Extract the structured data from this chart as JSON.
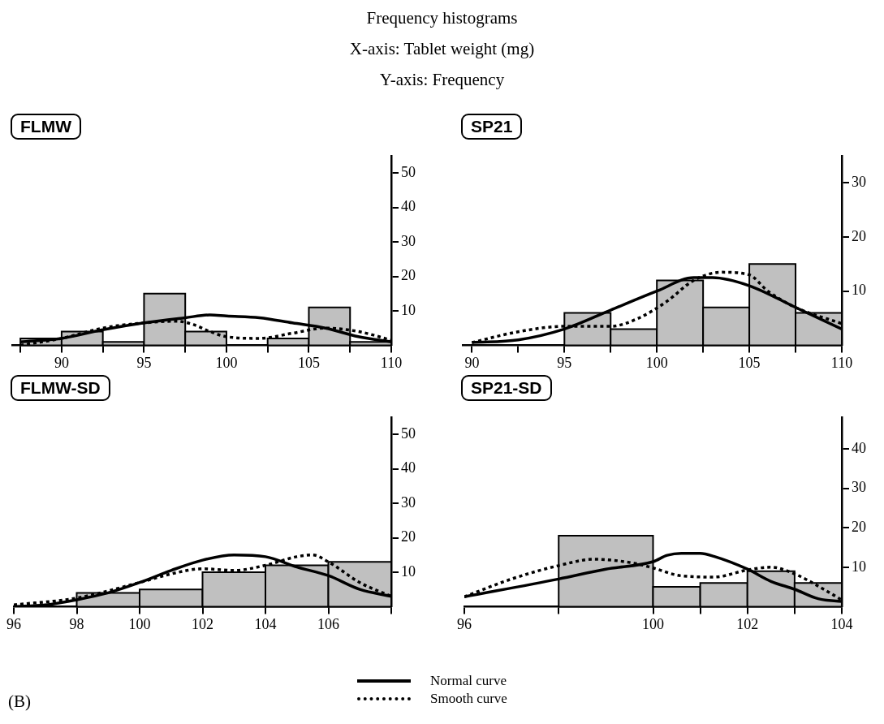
{
  "chart_data": [
    {
      "type": "other",
      "title": "Frequency histograms",
      "annotations": [
        "X-axis: Tablet weight (mg)",
        "Y-axis: Frequency",
        "(B)"
      ]
    },
    {
      "type": "histogram",
      "title": "FLMW",
      "bins": [
        87.5,
        90,
        92.5,
        95,
        97.5,
        100,
        102.5,
        105,
        107.5,
        110
      ],
      "values": [
        2,
        4,
        1,
        15,
        4,
        0,
        2,
        11,
        1
      ],
      "color": "#c0c0c0",
      "xlim": [
        87,
        110
      ],
      "ylim": [
        0,
        55
      ],
      "xticks": [
        {
          "value": 87.5,
          "label": null
        },
        90,
        {
          "value": 92.5,
          "label": null
        },
        95,
        {
          "value": 97.5,
          "label": null
        },
        100,
        {
          "value": 102.5,
          "label": null
        },
        105,
        {
          "value": 107.5,
          "label": null
        },
        110
      ],
      "yticks": [
        10,
        20,
        30,
        40,
        50
      ],
      "series": [
        {
          "type": "line",
          "color": "#000000",
          "line_style": "solid",
          "x": [
            87.5,
            90,
            92.5,
            95,
            97.5,
            99,
            100,
            102,
            104,
            106,
            108,
            110
          ],
          "values": [
            1,
            2,
            4.5,
            6.5,
            8,
            8.8,
            8.5,
            8,
            6.5,
            5,
            2.5,
            1
          ]
        },
        {
          "type": "line",
          "color": "#000000",
          "line_style": "dotted",
          "x": [
            87.5,
            90,
            92.5,
            95,
            97,
            98,
            99,
            100,
            102,
            104,
            106,
            108,
            110
          ],
          "values": [
            0,
            2,
            5,
            6.5,
            7,
            6,
            4,
            2.5,
            2,
            3.5,
            5,
            4,
            1.5
          ]
        }
      ]
    },
    {
      "type": "histogram",
      "title": "SP21",
      "bins": [
        95,
        97.5,
        100,
        102.5,
        105,
        107.5,
        110
      ],
      "values": [
        6,
        3,
        12,
        7,
        15,
        6
      ],
      "color": "#c0c0c0",
      "xlim": [
        89.5,
        110
      ],
      "ylim": [
        0,
        35
      ],
      "xticks": [
        90,
        {
          "value": 92.5,
          "label": null
        },
        95,
        {
          "value": 97.5,
          "label": null
        },
        100,
        {
          "value": 102.5,
          "label": null
        },
        105,
        {
          "value": 107.5,
          "label": null
        },
        110
      ],
      "yticks": [
        10,
        20,
        30
      ],
      "series": [
        {
          "type": "line",
          "color": "#000000",
          "line_style": "solid",
          "x": [
            90,
            92.5,
            95,
            97.5,
            100,
            102,
            103,
            105,
            107.5,
            110
          ],
          "values": [
            0.5,
            1,
            3,
            6.5,
            10,
            12.5,
            12.5,
            11,
            7,
            3
          ]
        },
        {
          "type": "line",
          "color": "#000000",
          "line_style": "dotted",
          "x": [
            90,
            92.5,
            95,
            97.5,
            99,
            100.5,
            102,
            103.5,
            105,
            106,
            107.5,
            110
          ],
          "values": [
            0.5,
            2.5,
            3.5,
            3.5,
            5,
            8,
            12,
            13.5,
            13,
            10,
            7,
            4
          ]
        }
      ]
    },
    {
      "type": "histogram",
      "title": "FLMW-SD",
      "bins": [
        98,
        100,
        102,
        104,
        106,
        108
      ],
      "values": [
        4,
        5,
        10,
        12,
        13
      ],
      "color": "#c0c0c0",
      "xlim": [
        96,
        108
      ],
      "ylim": [
        0,
        55
      ],
      "xticks": [
        96,
        98,
        100,
        102,
        104,
        106,
        {
          "value": 108,
          "label": null
        }
      ],
      "yticks": [
        10,
        20,
        30,
        40,
        50
      ],
      "series": [
        {
          "type": "line",
          "color": "#000000",
          "line_style": "solid",
          "x": [
            96,
            97,
            98,
            99,
            100,
            101,
            102,
            103,
            104,
            105,
            106,
            107,
            108
          ],
          "values": [
            0,
            0.5,
            2,
            4,
            7,
            10.5,
            13.5,
            15,
            14.5,
            11.5,
            9,
            5,
            3
          ]
        },
        {
          "type": "line",
          "color": "#000000",
          "line_style": "dotted",
          "x": [
            96,
            98,
            100,
            101,
            102,
            103,
            104,
            105,
            105.5,
            106,
            107,
            108
          ],
          "values": [
            0.5,
            2.5,
            7,
            9.5,
            11,
            10.5,
            12,
            14.5,
            15,
            13,
            7,
            3
          ]
        }
      ]
    },
    {
      "type": "histogram",
      "title": "SP21-SD",
      "bins": [
        98,
        100,
        101,
        102,
        103,
        104
      ],
      "values": [
        18,
        5,
        6,
        9,
        6
      ],
      "color": "#c0c0c0",
      "xlim": [
        96,
        104
      ],
      "ylim": [
        0,
        48
      ],
      "xticks": [
        96,
        {
          "value": 98,
          "label": null
        },
        100,
        {
          "value": 101,
          "label": null
        },
        102,
        {
          "value": 103,
          "label": null
        },
        104
      ],
      "yticks": [
        10,
        20,
        30,
        40
      ],
      "legend": "bottom",
      "series": [
        {
          "type": "line",
          "name": "Normal curve",
          "color": "#000000",
          "line_style": "solid",
          "x": [
            96,
            98,
            99,
            100,
            100.3,
            100.6,
            101,
            101.3,
            102,
            102.5,
            103,
            103.5,
            104
          ],
          "values": [
            2.5,
            7,
            9.5,
            11.4,
            13,
            13.5,
            13.5,
            12.7,
            9.5,
            6.4,
            4.4,
            2,
            1.3
          ]
        },
        {
          "type": "line",
          "name": "Smooth curve",
          "color": "#000000",
          "line_style": "dotted",
          "x": [
            96,
            97,
            98,
            98.75,
            99.6,
            100,
            100.6,
            101.3,
            102,
            102.5,
            103,
            103.5,
            104
          ],
          "values": [
            2.5,
            7,
            10.4,
            12,
            11,
            9.8,
            7.8,
            7.5,
            9.3,
            10,
            8.3,
            5.2,
            1.7
          ]
        }
      ]
    }
  ]
}
